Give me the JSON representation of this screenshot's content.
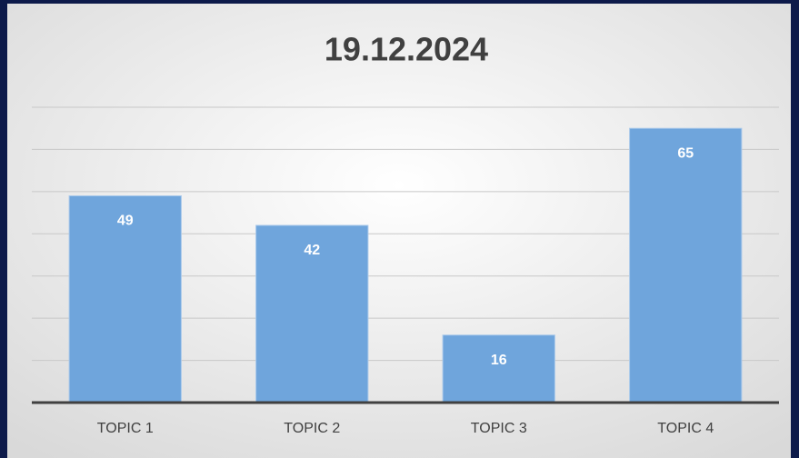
{
  "chart_data": {
    "type": "bar",
    "title": "19.12.2024",
    "categories": [
      "TOPIC 1",
      "TOPIC 2",
      "TOPIC 3",
      "TOPIC 4"
    ],
    "values": [
      49,
      42,
      16,
      65
    ],
    "color": "#6fa5dc",
    "ylim": [
      0,
      70
    ],
    "yticks": [
      0,
      10,
      20,
      30,
      40,
      50,
      60,
      70
    ],
    "grid": true
  }
}
